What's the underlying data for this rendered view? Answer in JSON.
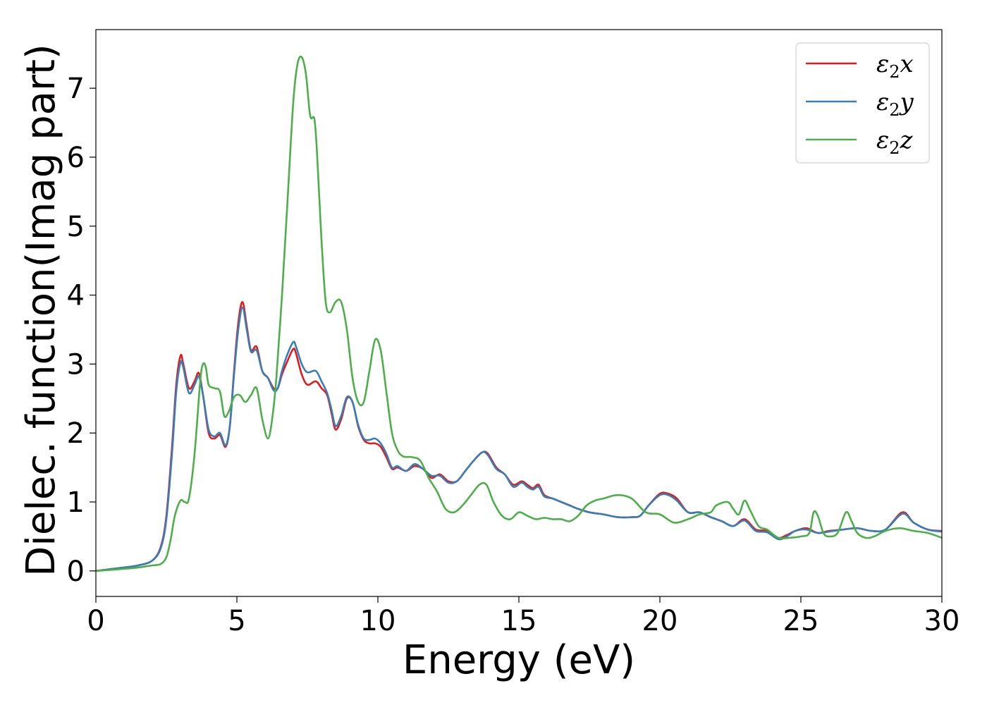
{
  "chart_data": {
    "type": "line",
    "title": "",
    "xlabel": "Energy (eV)",
    "ylabel": "Dielec. function(Imag part)",
    "xlim": [
      0,
      30
    ],
    "ylim": [
      -0.37,
      7.85
    ],
    "xticks": [
      0,
      5,
      10,
      15,
      20,
      25,
      30
    ],
    "yticks": [
      0,
      1,
      2,
      3,
      4,
      5,
      6,
      7
    ],
    "grid": false,
    "legend_position": "top-right",
    "series": [
      {
        "name": "ε₂x",
        "label_main": "ε",
        "label_sub": "2",
        "label_end": "x",
        "color": "#e41a1c",
        "x": [
          0,
          1,
          1.5,
          2,
          2.3,
          2.5,
          2.7,
          2.85,
          3.0,
          3.1,
          3.3,
          3.5,
          3.65,
          3.8,
          4.0,
          4.2,
          4.4,
          4.6,
          4.75,
          4.9,
          5.05,
          5.2,
          5.35,
          5.5,
          5.7,
          5.9,
          6.1,
          6.3,
          6.45,
          6.6,
          6.8,
          7.0,
          7.1,
          7.3,
          7.5,
          7.8,
          8.0,
          8.2,
          8.35,
          8.5,
          8.7,
          8.9,
          9.1,
          9.3,
          9.5,
          9.7,
          9.9,
          10.1,
          10.3,
          10.5,
          10.7,
          11.0,
          11.3,
          11.6,
          11.9,
          12.2,
          12.5,
          12.8,
          13.1,
          13.4,
          13.7,
          13.9,
          14.2,
          14.5,
          14.8,
          15.1,
          15.3,
          15.5,
          15.7,
          15.9,
          16.2,
          16.5,
          16.8,
          17.1,
          17.5,
          18.0,
          18.5,
          19.0,
          19.3,
          19.6,
          20.0,
          20.3,
          20.6,
          21.0,
          21.4,
          21.8,
          22.2,
          22.6,
          23.0,
          23.4,
          23.8,
          24.2,
          24.5,
          24.8,
          25.2,
          25.6,
          26.0,
          26.5,
          27.0,
          27.5,
          28.0,
          28.6,
          29.0,
          29.5,
          30.0
        ],
        "y": [
          0,
          0.05,
          0.08,
          0.15,
          0.35,
          0.8,
          1.8,
          2.7,
          3.12,
          3.0,
          2.65,
          2.75,
          2.87,
          2.55,
          2.0,
          1.92,
          1.97,
          1.8,
          2.1,
          2.9,
          3.6,
          3.9,
          3.55,
          3.2,
          3.25,
          2.9,
          2.8,
          2.65,
          2.65,
          2.85,
          3.05,
          3.22,
          3.15,
          2.85,
          2.7,
          2.75,
          2.65,
          2.55,
          2.3,
          2.05,
          2.2,
          2.5,
          2.45,
          2.1,
          1.9,
          1.85,
          1.85,
          1.8,
          1.65,
          1.48,
          1.5,
          1.45,
          1.52,
          1.48,
          1.35,
          1.4,
          1.3,
          1.3,
          1.45,
          1.6,
          1.72,
          1.7,
          1.5,
          1.4,
          1.25,
          1.3,
          1.25,
          1.2,
          1.25,
          1.1,
          1.05,
          1.0,
          0.95,
          0.9,
          0.85,
          0.82,
          0.78,
          0.78,
          0.8,
          0.95,
          1.12,
          1.12,
          1.05,
          0.85,
          0.85,
          0.78,
          0.72,
          0.65,
          0.75,
          0.6,
          0.58,
          0.48,
          0.52,
          0.58,
          0.62,
          0.55,
          0.58,
          0.6,
          0.62,
          0.58,
          0.6,
          0.85,
          0.7,
          0.6,
          0.58
        ]
      },
      {
        "name": "ε₂y",
        "label_main": "ε",
        "label_sub": "2",
        "label_end": "y",
        "color": "#377eb8",
        "x": [
          0,
          1,
          1.5,
          2,
          2.3,
          2.5,
          2.7,
          2.85,
          3.0,
          3.1,
          3.3,
          3.5,
          3.65,
          3.8,
          4.0,
          4.2,
          4.4,
          4.6,
          4.75,
          4.9,
          5.05,
          5.2,
          5.35,
          5.5,
          5.7,
          5.9,
          6.1,
          6.3,
          6.45,
          6.6,
          6.8,
          7.0,
          7.1,
          7.3,
          7.5,
          7.8,
          8.0,
          8.2,
          8.35,
          8.5,
          8.7,
          8.9,
          9.1,
          9.3,
          9.5,
          9.7,
          9.9,
          10.1,
          10.3,
          10.5,
          10.7,
          11.0,
          11.3,
          11.6,
          11.9,
          12.2,
          12.5,
          12.8,
          13.1,
          13.4,
          13.7,
          13.9,
          14.2,
          14.5,
          14.8,
          15.1,
          15.3,
          15.5,
          15.7,
          15.9,
          16.2,
          16.5,
          16.8,
          17.1,
          17.5,
          18.0,
          18.5,
          19.0,
          19.3,
          19.6,
          20.0,
          20.3,
          20.6,
          21.0,
          21.4,
          21.8,
          22.2,
          22.6,
          23.0,
          23.4,
          23.8,
          24.2,
          24.5,
          24.8,
          25.2,
          25.6,
          26.0,
          26.5,
          27.0,
          27.5,
          28.0,
          28.6,
          29.0,
          29.5,
          30.0
        ],
        "y": [
          0,
          0.05,
          0.08,
          0.15,
          0.33,
          0.75,
          1.7,
          2.6,
          3.02,
          2.95,
          2.58,
          2.7,
          2.82,
          2.55,
          2.05,
          1.95,
          2.0,
          1.82,
          2.1,
          2.85,
          3.5,
          3.82,
          3.5,
          3.18,
          3.2,
          2.9,
          2.8,
          2.62,
          2.65,
          2.9,
          3.15,
          3.32,
          3.25,
          3.0,
          2.88,
          2.9,
          2.75,
          2.58,
          2.35,
          2.1,
          2.25,
          2.52,
          2.45,
          2.12,
          1.92,
          1.9,
          1.92,
          1.85,
          1.7,
          1.5,
          1.52,
          1.45,
          1.55,
          1.48,
          1.38,
          1.38,
          1.28,
          1.3,
          1.45,
          1.6,
          1.72,
          1.68,
          1.48,
          1.4,
          1.22,
          1.28,
          1.22,
          1.18,
          1.22,
          1.08,
          1.05,
          1.0,
          0.95,
          0.9,
          0.85,
          0.82,
          0.78,
          0.78,
          0.8,
          0.95,
          1.1,
          1.1,
          1.02,
          0.85,
          0.85,
          0.78,
          0.72,
          0.65,
          0.73,
          0.58,
          0.56,
          0.46,
          0.5,
          0.58,
          0.6,
          0.55,
          0.57,
          0.6,
          0.62,
          0.58,
          0.6,
          0.83,
          0.7,
          0.6,
          0.57
        ]
      },
      {
        "name": "ε₂z",
        "label_main": "ε",
        "label_sub": "2",
        "label_end": "z",
        "color": "#4daf4a",
        "x": [
          0,
          1,
          1.5,
          2,
          2.3,
          2.5,
          2.65,
          2.8,
          3.0,
          3.15,
          3.3,
          3.5,
          3.7,
          3.8,
          3.9,
          4.0,
          4.2,
          4.4,
          4.55,
          4.7,
          4.9,
          5.1,
          5.3,
          5.5,
          5.7,
          5.9,
          6.1,
          6.25,
          6.4,
          6.6,
          6.8,
          7.0,
          7.15,
          7.3,
          7.45,
          7.6,
          7.75,
          7.85,
          8.0,
          8.15,
          8.3,
          8.5,
          8.7,
          8.9,
          9.1,
          9.3,
          9.5,
          9.7,
          9.9,
          10.1,
          10.3,
          10.5,
          10.7,
          10.9,
          11.2,
          11.5,
          11.8,
          12.1,
          12.4,
          12.7,
          13.0,
          13.3,
          13.6,
          13.85,
          14.1,
          14.4,
          14.7,
          15.0,
          15.3,
          15.6,
          15.9,
          16.2,
          16.5,
          16.8,
          17.1,
          17.4,
          17.7,
          18.0,
          18.5,
          19.0,
          19.5,
          20.0,
          20.5,
          21.0,
          21.4,
          21.8,
          22.0,
          22.4,
          22.6,
          22.8,
          23.0,
          23.2,
          23.5,
          23.8,
          24.2,
          24.6,
          25.0,
          25.3,
          25.45,
          25.6,
          25.8,
          26.0,
          26.3,
          26.6,
          26.8,
          27.0,
          27.3,
          27.6,
          28.0,
          28.5,
          29.0,
          29.5,
          30.0
        ],
        "y": [
          0,
          0.03,
          0.05,
          0.08,
          0.1,
          0.2,
          0.45,
          0.8,
          1.02,
          1.0,
          1.05,
          1.7,
          2.75,
          3.0,
          2.95,
          2.7,
          2.65,
          2.6,
          2.25,
          2.3,
          2.52,
          2.55,
          2.45,
          2.55,
          2.65,
          2.2,
          1.92,
          2.2,
          2.8,
          4.0,
          5.4,
          6.8,
          7.35,
          7.45,
          7.2,
          6.6,
          6.55,
          6.0,
          4.8,
          3.9,
          3.75,
          3.9,
          3.9,
          3.5,
          2.8,
          2.45,
          2.45,
          2.9,
          3.35,
          3.2,
          2.6,
          2.0,
          1.75,
          1.66,
          1.65,
          1.6,
          1.35,
          1.15,
          0.9,
          0.85,
          0.95,
          1.1,
          1.25,
          1.25,
          1.0,
          0.8,
          0.75,
          0.85,
          0.8,
          0.75,
          0.77,
          0.75,
          0.75,
          0.72,
          0.8,
          0.95,
          1.02,
          1.05,
          1.1,
          1.05,
          0.85,
          0.82,
          0.7,
          0.75,
          0.82,
          0.85,
          0.95,
          1.0,
          0.9,
          0.82,
          1.02,
          0.88,
          0.65,
          0.6,
          0.48,
          0.48,
          0.5,
          0.55,
          0.85,
          0.8,
          0.55,
          0.5,
          0.55,
          0.85,
          0.72,
          0.55,
          0.48,
          0.5,
          0.58,
          0.62,
          0.58,
          0.55,
          0.48
        ]
      }
    ]
  }
}
